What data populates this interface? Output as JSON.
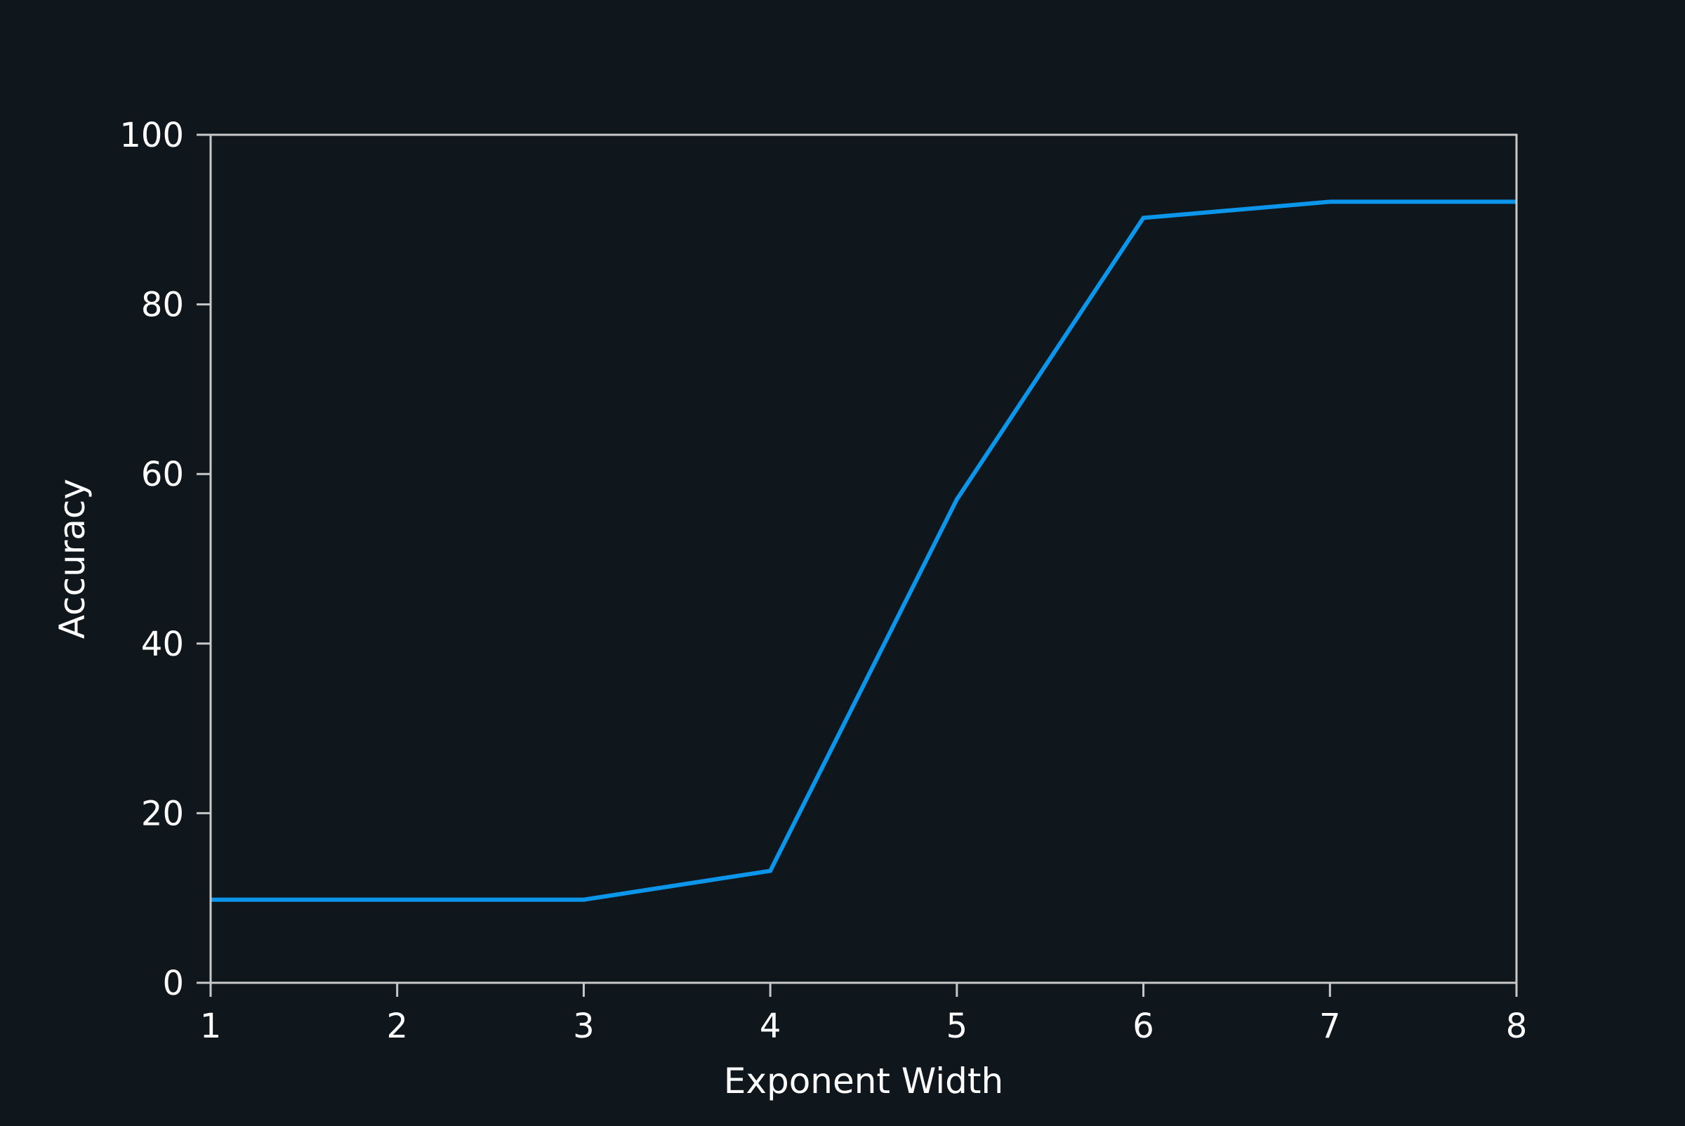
{
  "colors": {
    "background": "#0f171d",
    "axes": "#c8c8c8",
    "text": "#ffffff",
    "series": "#0b95eb"
  },
  "chart_data": {
    "type": "line",
    "title": "",
    "xlabel": "Exponent Width",
    "ylabel": "Accuracy",
    "x": [
      1,
      2,
      3,
      4,
      5,
      6,
      7,
      8
    ],
    "series": [
      {
        "values": [
          9.8,
          9.8,
          9.8,
          13.2,
          57.0,
          90.2,
          92.1,
          92.1
        ]
      }
    ],
    "xlim": [
      1,
      8
    ],
    "ylim": [
      0,
      100
    ],
    "xticks": [
      1,
      2,
      3,
      4,
      5,
      6,
      7,
      8
    ],
    "yticks": [
      0,
      20,
      40,
      60,
      80,
      100
    ],
    "xtick_labels": [
      "1",
      "2",
      "3",
      "4",
      "5",
      "6",
      "7",
      "8"
    ],
    "ytick_labels": [
      "0",
      "20",
      "40",
      "60",
      "80",
      "100"
    ],
    "grid": false,
    "legend": "none"
  }
}
